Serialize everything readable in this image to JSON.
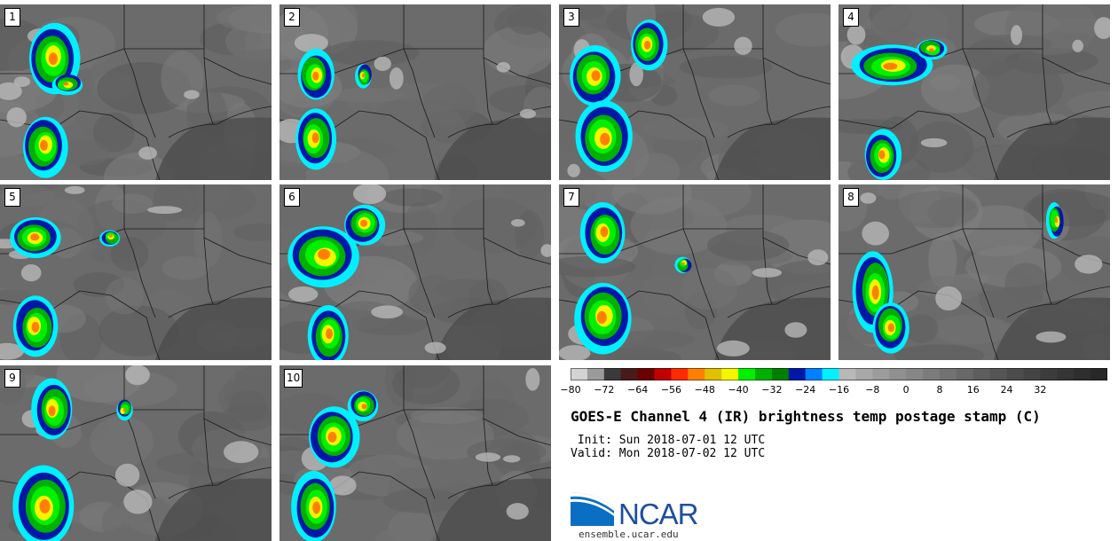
{
  "panels": [
    {
      "num": "1"
    },
    {
      "num": "2"
    },
    {
      "num": "3"
    },
    {
      "num": "4"
    },
    {
      "num": "5"
    },
    {
      "num": "6"
    },
    {
      "num": "7"
    },
    {
      "num": "8"
    },
    {
      "num": "9"
    },
    {
      "num": "10"
    }
  ],
  "colorbar": {
    "colors": [
      "#d3d3d3",
      "#9b9b9b",
      "#3a3a3a",
      "#4a1a1a",
      "#6b0000",
      "#c00000",
      "#ff2a00",
      "#ff8000",
      "#e0c000",
      "#f5f500",
      "#00f000",
      "#00b000",
      "#008000",
      "#0018a8",
      "#0080ff",
      "#00f0ff",
      "#b8b8b8",
      "#a8a8a8",
      "#9c9c9c",
      "#909090",
      "#868686",
      "#7c7c7c",
      "#727272",
      "#686868",
      "#5e5e5e",
      "#555555",
      "#4c4c4c",
      "#444444",
      "#3c3c3c",
      "#353535",
      "#2e2e2e",
      "#282828"
    ],
    "ticks": [
      "−80",
      "−72",
      "−64",
      "−56",
      "−48",
      "−40",
      "−32",
      "−24",
      "−16",
      "−8",
      "0",
      "8",
      "16",
      "24",
      "32"
    ]
  },
  "title": "GOES-E Channel 4 (IR) brightness temp postage stamp (C)",
  "init": " Init: Sun 2018-07-01 12 UTC",
  "valid": "Valid: Mon 2018-07-02 12 UTC",
  "logo_text": "NCAR",
  "website": "ensemble.ucar.edu"
}
